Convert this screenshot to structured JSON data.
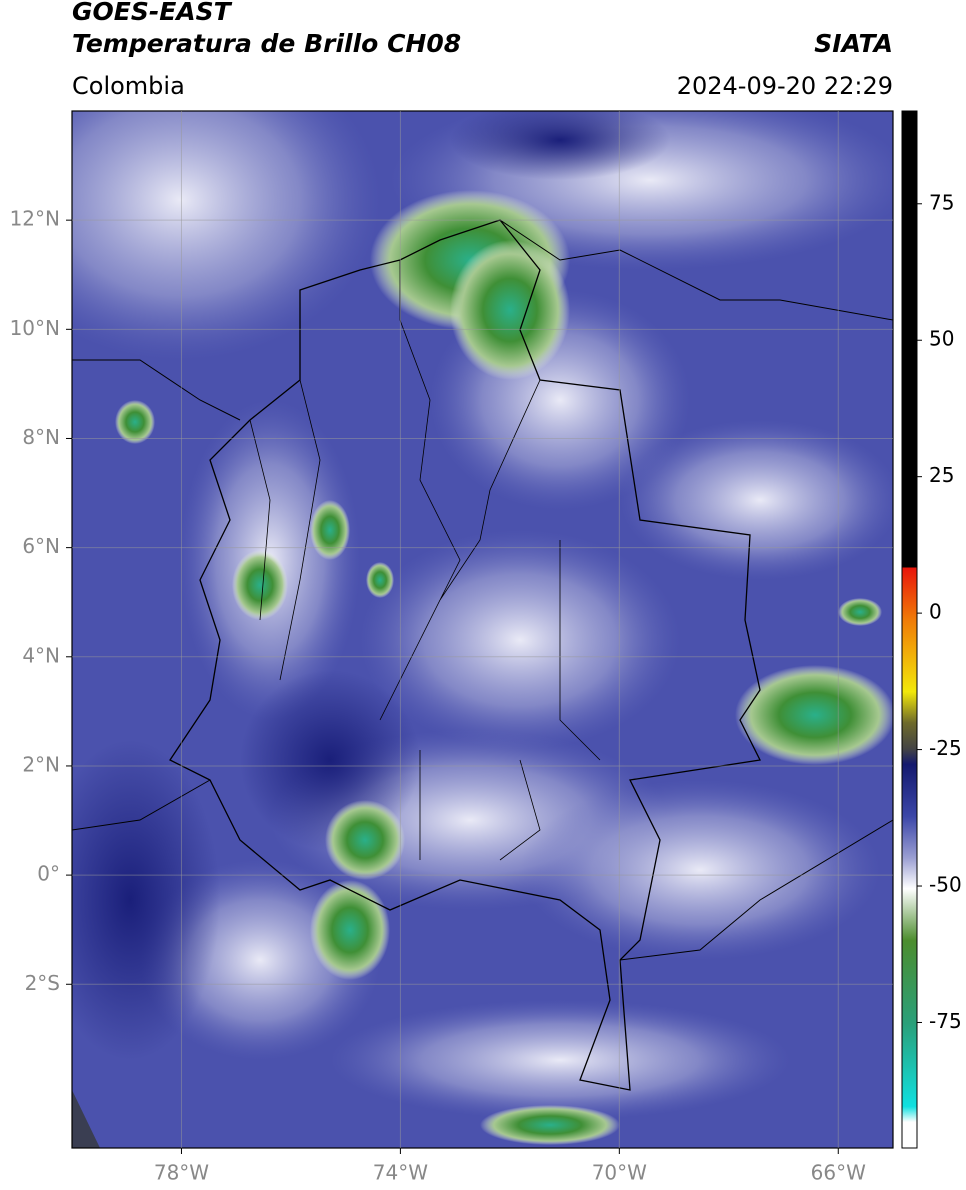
{
  "header": {
    "title": "GOES-EAST",
    "subtitle": "Temperatura de Brillo CH08",
    "source": "SIATA",
    "region": "Colombia",
    "datetime": "2024-09-20 22:29"
  },
  "map": {
    "lonlim": [
      -80,
      -65
    ],
    "latlim": [
      -5,
      14
    ],
    "lonticks": [
      {
        "value": -78,
        "label": "78°W"
      },
      {
        "value": -74,
        "label": "74°W"
      },
      {
        "value": -70,
        "label": "70°W"
      },
      {
        "value": -66,
        "label": "66°W"
      }
    ],
    "latticks": [
      {
        "value": 12,
        "label": "12°N"
      },
      {
        "value": 10,
        "label": "10°N"
      },
      {
        "value": 8,
        "label": "8°N"
      },
      {
        "value": 6,
        "label": "6°N"
      },
      {
        "value": 4,
        "label": "4°N"
      },
      {
        "value": 2,
        "label": "2°N"
      },
      {
        "value": 0,
        "label": "0°"
      },
      {
        "value": -2,
        "label": "2°S"
      }
    ],
    "grid": true
  },
  "colorbar": {
    "lim": [
      -98,
      92
    ],
    "ticks": [
      75,
      50,
      25,
      0,
      -25,
      -50,
      -75
    ]
  }
}
